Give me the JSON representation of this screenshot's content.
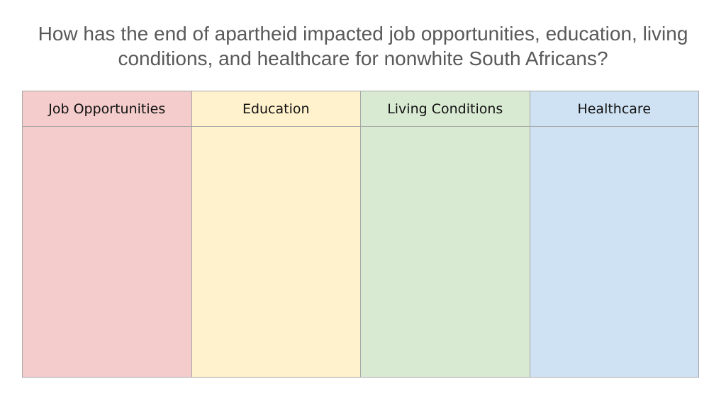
{
  "title": "How has the end of apartheid impacted job opportunities, education, living conditions, and healthcare for nonwhite South Africans?",
  "table": {
    "headers": [
      "Job Opportunities",
      "Education",
      "Living Conditions",
      "Healthcare"
    ]
  }
}
